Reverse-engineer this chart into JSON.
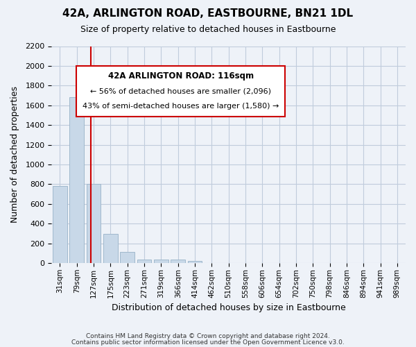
{
  "title": "42A, ARLINGTON ROAD, EASTBOURNE, BN21 1DL",
  "subtitle": "Size of property relative to detached houses in Eastbourne",
  "xlabel": "Distribution of detached houses by size in Eastbourne",
  "ylabel": "Number of detached properties",
  "footer_line1": "Contains HM Land Registry data © Crown copyright and database right 2024.",
  "footer_line2": "Contains public sector information licensed under the Open Government Licence v3.0.",
  "x_labels": [
    "31sqm",
    "79sqm",
    "127sqm",
    "175sqm",
    "223sqm",
    "271sqm",
    "319sqm",
    "366sqm",
    "414sqm",
    "462sqm",
    "510sqm",
    "558sqm",
    "606sqm",
    "654sqm",
    "702sqm",
    "750sqm",
    "798sqm",
    "846sqm",
    "894sqm",
    "941sqm",
    "989sqm"
  ],
  "bar_values": [
    780,
    1680,
    800,
    295,
    115,
    35,
    35,
    35,
    20,
    0,
    0,
    0,
    0,
    0,
    0,
    0,
    0,
    0,
    0,
    0,
    0
  ],
  "bar_color": "#c8d8e8",
  "bar_edge_color": "#a0b8cc",
  "vline_pos": 1.85,
  "vline_color": "#cc0000",
  "annotation_title": "42A ARLINGTON ROAD: 116sqm",
  "annotation_line1": "← 56% of detached houses are smaller (2,096)",
  "annotation_line2": "43% of semi-detached houses are larger (1,580) →",
  "annotation_box_color": "#ffffff",
  "annotation_box_edge": "#cc0000",
  "ylim": [
    0,
    2200
  ],
  "yticks": [
    0,
    200,
    400,
    600,
    800,
    1000,
    1200,
    1400,
    1600,
    1800,
    2000,
    2200
  ],
  "grid_color": "#c0ccdc",
  "bg_color": "#eef2f8",
  "plot_bg_color": "#eef2f8"
}
